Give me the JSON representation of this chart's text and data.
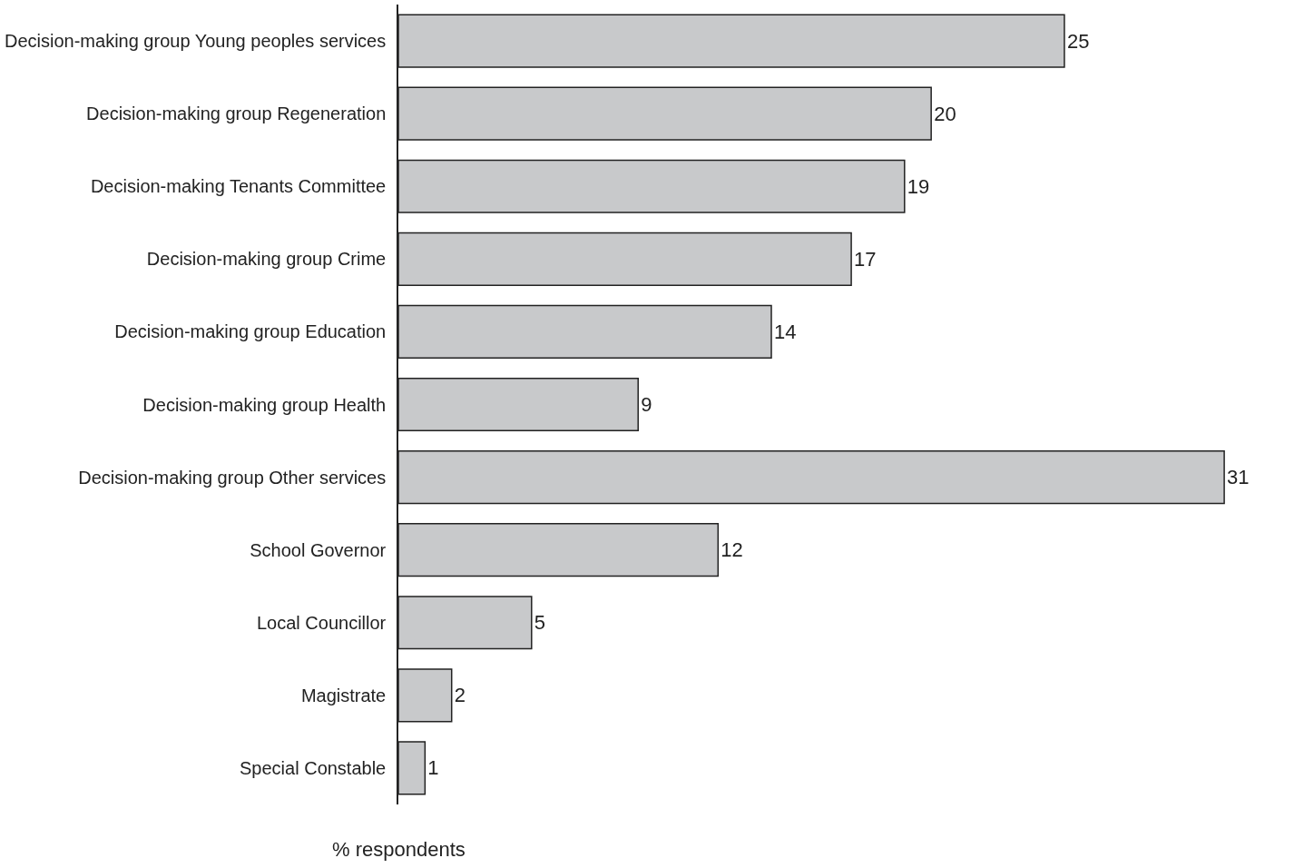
{
  "chart_data": {
    "type": "bar",
    "orientation": "horizontal",
    "xlabel": "% respondents",
    "categories": [
      "Decision-making group Young peoples services",
      "Decision-making group Regeneration",
      "Decision-making Tenants Committee",
      "Decision-making group Crime",
      "Decision-making group Education",
      "Decision-making group Health",
      "Decision-making group Other services",
      "School Governor",
      "Local Councillor",
      "Magistrate",
      "Special Constable"
    ],
    "values": [
      25,
      20,
      19,
      17,
      14,
      9,
      31,
      12,
      5,
      2,
      1
    ],
    "color": "#c8c9cb",
    "data_labels": true,
    "tick_labels": "y"
  }
}
